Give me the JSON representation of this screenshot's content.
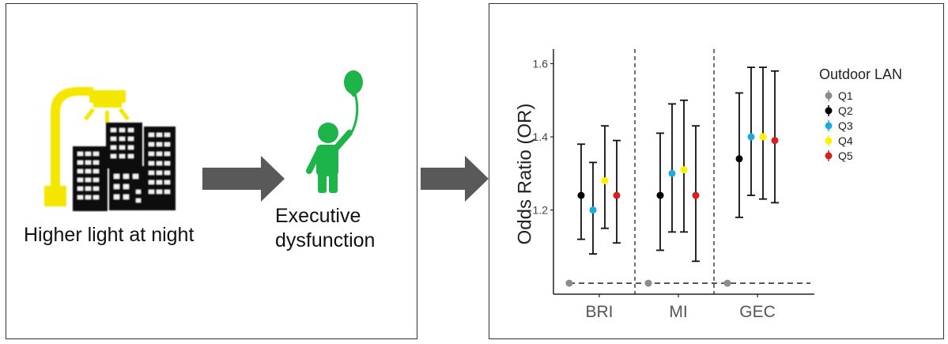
{
  "left_panel": {
    "exposure_label": "Higher light at night",
    "outcome_line1": "Executive",
    "outcome_line2": "dysfunction",
    "icons": [
      "streetlight-icon",
      "city-buildings-icon",
      "child-with-balloon-icon",
      "arrow-right-icon"
    ]
  },
  "colors": {
    "streetlight": "#f5e600",
    "person": "#1db44a",
    "arrow": "#595959",
    "building": "#111111"
  },
  "chart_data": {
    "type": "scatter",
    "subtype": "error-bar",
    "title": "",
    "xlabel": "",
    "ylabel": "Odds Ratio (OR)",
    "ylim": [
      0.97,
      1.64
    ],
    "yticks": [
      1.2,
      1.4,
      1.6
    ],
    "ytick_labels": [
      "1.2",
      "1.4",
      "1.6"
    ],
    "reference_line": 1.0,
    "grid": false,
    "categories": [
      "BRI",
      "MI",
      "GEC"
    ],
    "legend": {
      "title": "Outdoor LAN",
      "position": "right"
    },
    "series": [
      {
        "name": "Q1",
        "color": "#8c8c8c",
        "values": [
          1.0,
          1.0,
          1.0
        ],
        "lower": [
          null,
          null,
          null
        ],
        "upper": [
          null,
          null,
          null
        ]
      },
      {
        "name": "Q2",
        "color": "#000000",
        "values": [
          1.24,
          1.24,
          1.34
        ],
        "lower": [
          1.12,
          1.09,
          1.18
        ],
        "upper": [
          1.38,
          1.41,
          1.52
        ]
      },
      {
        "name": "Q3",
        "color": "#1ea9df",
        "values": [
          1.2,
          1.3,
          1.4
        ],
        "lower": [
          1.08,
          1.14,
          1.24
        ],
        "upper": [
          1.33,
          1.49,
          1.59
        ]
      },
      {
        "name": "Q4",
        "color": "#ffef00",
        "values": [
          1.28,
          1.31,
          1.4
        ],
        "lower": [
          1.15,
          1.14,
          1.23
        ],
        "upper": [
          1.43,
          1.5,
          1.59
        ]
      },
      {
        "name": "Q5",
        "color": "#d61f1f",
        "values": [
          1.24,
          1.24,
          1.39
        ],
        "lower": [
          1.11,
          1.06,
          1.22
        ],
        "upper": [
          1.39,
          1.43,
          1.58
        ]
      }
    ]
  }
}
